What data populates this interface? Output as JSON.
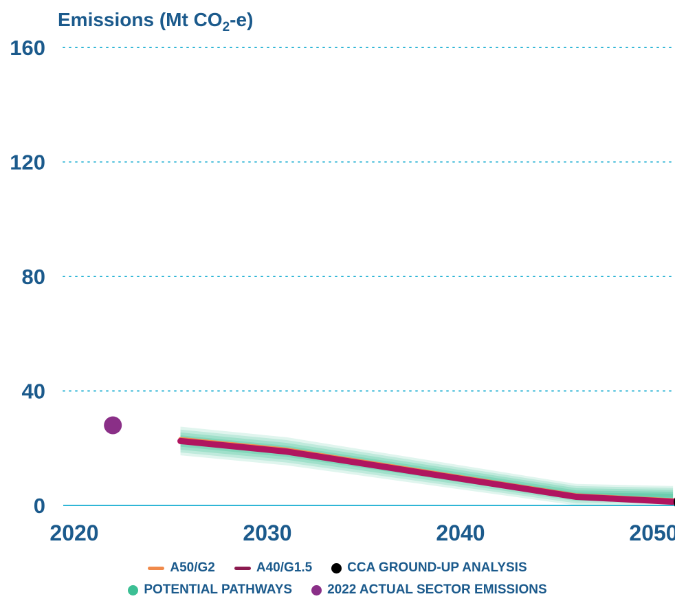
{
  "chart_data": {
    "type": "line",
    "title": "",
    "ylabel": "Emissions (Mt CO₂-e)",
    "xlabel": "",
    "xlim": [
      2019.5,
      2051.5
    ],
    "ylim": [
      0,
      160
    ],
    "x_ticks": [
      "2020",
      "2030",
      "2040",
      "2050"
    ],
    "y_ticks": [
      "0",
      "40",
      "80",
      "120",
      "160"
    ],
    "grid": true,
    "legend_position": "bottom",
    "series": [
      {
        "name": "A50/G2",
        "color": "#f08a4b",
        "x": [
          2025.5,
          2031,
          2046,
          2051
        ],
        "values": [
          23.2,
          19.5,
          3.5,
          1.8
        ]
      },
      {
        "name": "A40/G1.5",
        "color": "#b0155f",
        "x": [
          2025.5,
          2031,
          2046,
          2051
        ],
        "values": [
          22.5,
          18.8,
          3.0,
          1.3
        ]
      }
    ],
    "pathways_band": {
      "name": "POTENTIAL PATHWAYS",
      "color": "#3cbf94",
      "x": [
        2025.5,
        2031,
        2046,
        2051
      ],
      "upper": [
        27.5,
        23.8,
        7.5,
        6.8
      ],
      "lower": [
        17.5,
        14.0,
        0.0,
        0.0
      ]
    },
    "points": [
      {
        "name": "CCA GROUND-UP ANALYSIS",
        "color": "#000000",
        "x": 2051.5,
        "value": 1.2
      },
      {
        "name": "2022 ACTUAL SECTOR EMISSIONS",
        "color": "#8a2f87",
        "x": 2022,
        "value": 28
      }
    ]
  },
  "legend": {
    "row1": [
      {
        "label": "A50/G2",
        "shape": "line",
        "color": "#f08a4b"
      },
      {
        "label": "A40/G1.5",
        "shape": "line",
        "color": "#8b1a4f"
      },
      {
        "label": "CCA GROUND-UP ANALYSIS",
        "shape": "dot",
        "color": "#000000"
      }
    ],
    "row2": [
      {
        "label": "POTENTIAL PATHWAYS",
        "shape": "dot",
        "color": "#3cbf94"
      },
      {
        "label": "2022 ACTUAL SECTOR EMISSIONS",
        "shape": "dot",
        "color": "#8a2f87"
      }
    ]
  },
  "colors": {
    "text": "#1b5a8c",
    "grid": "#30b6d6",
    "axis": "#30b6d6"
  }
}
